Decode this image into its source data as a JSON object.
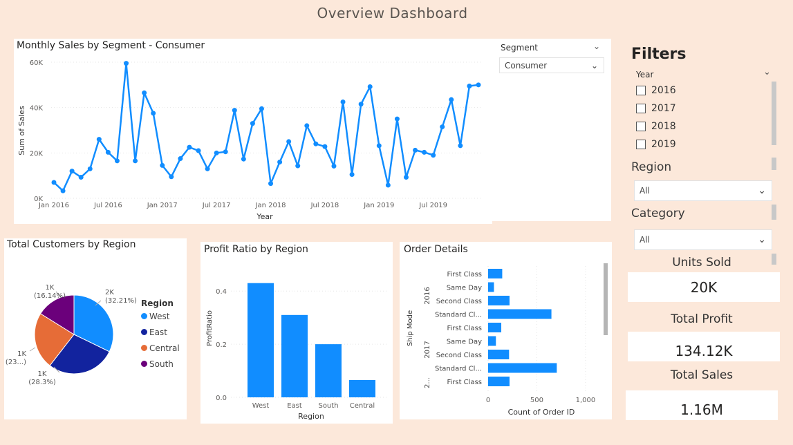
{
  "dashboard": {
    "title": "Overview Dashboard"
  },
  "colors": {
    "accent": "#118dff",
    "west": "#118dff",
    "east": "#12239e",
    "central": "#e66c37",
    "south": "#6b007b",
    "background": "#fce8da"
  },
  "line_chart": {
    "title": "Monthly Sales by Segment - Consumer",
    "xlabel": "Year",
    "ylabel": "Sum of Sales",
    "y_ticks": [
      "60K",
      "40K",
      "20K",
      "0K"
    ],
    "x_ticks": [
      "Jan 2016",
      "Jul 2016",
      "Jan 2017",
      "Jul 2017",
      "Jan 2018",
      "Jul 2018",
      "Jan 2019",
      "Jul 2019"
    ]
  },
  "segment_slicer": {
    "label": "Segment",
    "value": "Consumer"
  },
  "filters": {
    "title": "Filters",
    "year_label": "Year",
    "years": [
      "2016",
      "2017",
      "2018",
      "2019"
    ],
    "region_label": "Region",
    "region_value": "All",
    "category_label": "Category",
    "category_value": "All"
  },
  "kpis": {
    "units_sold_label": "Units Sold",
    "units_sold_value": "20K",
    "total_profit_label": "Total Profit",
    "total_profit_value": "134.12K",
    "total_sales_label": "Total Sales",
    "total_sales_value": "1.16M"
  },
  "pie_chart": {
    "title": "Total Customers by Region",
    "legend_title": "Region",
    "legend": [
      "West",
      "East",
      "Central",
      "South"
    ],
    "labels": {
      "west": [
        "2K",
        "(32.21%)"
      ],
      "east": [
        "1K",
        "(28.3%)"
      ],
      "central": [
        "1K",
        "(23...)"
      ],
      "south": [
        "1K",
        "(16.14%)"
      ]
    }
  },
  "bar_chart": {
    "title": "Profit Ratio by Region",
    "xlabel": "Region",
    "ylabel": "ProfitRatio",
    "y_ticks": [
      "0.4",
      "0.2",
      "0.0"
    ]
  },
  "hbar_chart": {
    "title": "Order Details",
    "xlabel": "Count of Order ID",
    "ylabel": "Ship Mode",
    "x_ticks": [
      "0",
      "500",
      "1,000"
    ],
    "groups": [
      "2016",
      "2017",
      "2..."
    ]
  },
  "chart_data": [
    {
      "type": "line",
      "title": "Monthly Sales by Segment - Consumer",
      "xlabel": "Year",
      "ylabel": "Sum of Sales",
      "ylim": [
        0,
        60000
      ],
      "x": [
        "2016-01",
        "2016-02",
        "2016-03",
        "2016-04",
        "2016-05",
        "2016-06",
        "2016-07",
        "2016-08",
        "2016-09",
        "2016-10",
        "2016-11",
        "2016-12",
        "2017-01",
        "2017-02",
        "2017-03",
        "2017-04",
        "2017-05",
        "2017-06",
        "2017-07",
        "2017-08",
        "2017-09",
        "2017-10",
        "2017-11",
        "2017-12",
        "2018-01",
        "2018-02",
        "2018-03",
        "2018-04",
        "2018-05",
        "2018-06",
        "2018-07",
        "2018-08",
        "2018-09",
        "2018-10",
        "2018-11",
        "2018-12",
        "2019-01",
        "2019-02",
        "2019-03",
        "2019-04",
        "2019-05",
        "2019-06",
        "2019-07",
        "2019-08",
        "2019-09",
        "2019-10",
        "2019-11",
        "2019-12"
      ],
      "values": [
        7000,
        3300,
        12000,
        9300,
        13000,
        26000,
        20300,
        16500,
        59500,
        16500,
        46500,
        37500,
        14500,
        9500,
        17500,
        22500,
        21000,
        13000,
        20000,
        20500,
        38800,
        17300,
        33000,
        39500,
        6500,
        16000,
        25000,
        14300,
        32000,
        24000,
        22800,
        14200,
        42500,
        10500,
        41500,
        49200,
        23200,
        5800,
        35000,
        9300,
        21200,
        20300,
        19000,
        31500,
        43500,
        23200,
        49500,
        50000
      ]
    },
    {
      "type": "pie",
      "title": "Total Customers by Region",
      "categories": [
        "West",
        "East",
        "Central",
        "South"
      ],
      "values": [
        32.21,
        28.3,
        23.35,
        16.14
      ]
    },
    {
      "type": "bar",
      "title": "Profit Ratio by Region",
      "xlabel": "Region",
      "ylabel": "ProfitRatio",
      "categories": [
        "West",
        "East",
        "South",
        "Central"
      ],
      "values": [
        0.43,
        0.31,
        0.2,
        0.065
      ],
      "ylim": [
        0,
        0.45
      ]
    },
    {
      "type": "bar",
      "orientation": "horizontal",
      "title": "Order Details",
      "xlabel": "Count of Order ID",
      "ylabel": "Ship Mode",
      "categories": [
        "First Class",
        "Same Day",
        "Second Class",
        "Standard Cl...",
        "First Class",
        "Same Day",
        "Second Class",
        "Standard Cl...",
        "First Class"
      ],
      "groups": [
        "2016",
        "2016",
        "2016",
        "2016",
        "2017",
        "2017",
        "2017",
        "2017",
        "2..."
      ],
      "values": [
        145,
        60,
        220,
        650,
        135,
        80,
        215,
        705,
        220
      ],
      "xlim": [
        0,
        1100
      ]
    }
  ]
}
